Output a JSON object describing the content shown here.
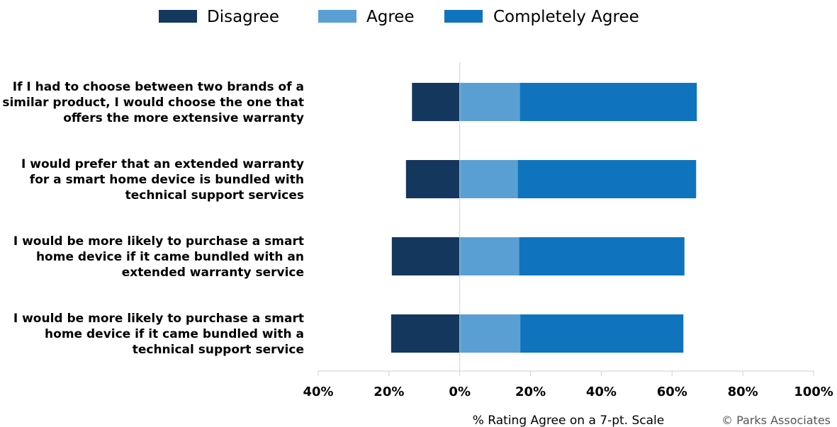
{
  "chart_data": {
    "type": "bar",
    "orientation": "horizontal",
    "stacked": true,
    "diverging": true,
    "categories": [
      [
        "If I had to choose between two brands of a",
        "similar product, I would choose the one that",
        "offers the more extensive warranty"
      ],
      [
        "I would prefer that an extended warranty",
        "for a smart home device is bundled with",
        "technical support services"
      ],
      [
        "I would be more likely to purchase a smart",
        "home device if it came bundled with an",
        "extended warranty service"
      ],
      [
        "I would be more likely to purchase a smart",
        "home device if it came bundled with a",
        "technical support service"
      ]
    ],
    "series": [
      {
        "name": "Disagree",
        "color": "#14375e",
        "values": [
          -13.5,
          -15.2,
          -19.2,
          -19.4
        ]
      },
      {
        "name": "Agree",
        "color": "#5a9fd3",
        "values": [
          17.0,
          16.4,
          16.8,
          17.1
        ]
      },
      {
        "name": "Completely Agree",
        "color": "#0f74bd",
        "values": [
          50.0,
          50.4,
          46.7,
          46.1
        ]
      }
    ],
    "xlim": [
      -40,
      100
    ],
    "xticks": [
      -40,
      -20,
      0,
      20,
      40,
      60,
      80,
      100
    ],
    "xtick_labels": [
      "40%",
      "20%",
      "0%",
      "20%",
      "40%",
      "60%",
      "80%",
      "100%"
    ],
    "xlabel": "% Rating Agree on a 7-pt. Scale",
    "legend_position": "top",
    "grid": false
  },
  "source": "© Parks Associates"
}
